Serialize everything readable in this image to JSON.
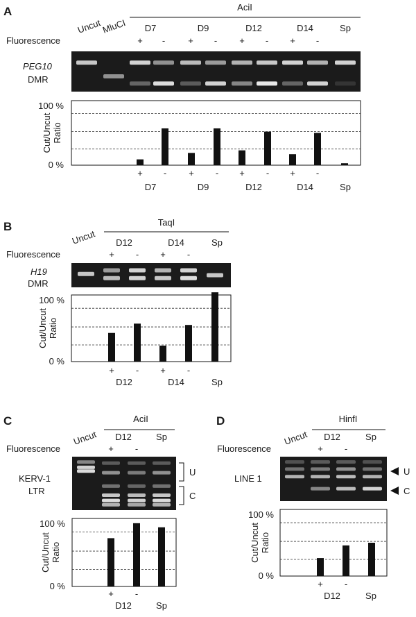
{
  "colors": {
    "gel_background": "#1b1b1b",
    "band": "#f2f2f2",
    "bar": "#111111",
    "axis": "#111111",
    "gridline": "#333333"
  },
  "panels": [
    {
      "letter": "A",
      "header_lanes": [
        "Uncut",
        "MluCI"
      ],
      "enzyme": "AciI",
      "fluorescence_label": "Fluorescence",
      "groups": [
        "D7",
        "D9",
        "D12",
        "D14",
        "Sp"
      ],
      "fluorescence_signs": [
        "+",
        "-",
        "+",
        "-",
        "+",
        "-",
        "+",
        "-"
      ],
      "gel_label_line1": "PEG10",
      "gel_label_line2": "DMR",
      "gel_lanes": [
        {
          "bands": [
            {
              "pos": 0.28,
              "w": 0.8
            }
          ]
        },
        {
          "bands": [
            {
              "pos": 0.62,
              "w": 0.55
            }
          ]
        },
        {
          "bands": [
            {
              "pos": 0.28,
              "w": 0.85
            },
            {
              "pos": 0.8,
              "w": 0.35
            }
          ]
        },
        {
          "bands": [
            {
              "pos": 0.28,
              "w": 0.55
            },
            {
              "pos": 0.8,
              "w": 0.9
            }
          ]
        },
        {
          "bands": [
            {
              "pos": 0.28,
              "w": 0.75
            },
            {
              "pos": 0.8,
              "w": 0.3
            }
          ]
        },
        {
          "bands": [
            {
              "pos": 0.28,
              "w": 0.6
            },
            {
              "pos": 0.8,
              "w": 0.85
            }
          ]
        },
        {
          "bands": [
            {
              "pos": 0.28,
              "w": 0.7
            },
            {
              "pos": 0.8,
              "w": 0.5
            }
          ]
        },
        {
          "bands": [
            {
              "pos": 0.28,
              "w": 0.8
            },
            {
              "pos": 0.8,
              "w": 0.95
            }
          ]
        },
        {
          "bands": [
            {
              "pos": 0.28,
              "w": 0.85
            },
            {
              "pos": 0.8,
              "w": 0.35
            }
          ]
        },
        {
          "bands": [
            {
              "pos": 0.28,
              "w": 0.7
            },
            {
              "pos": 0.8,
              "w": 0.85
            }
          ]
        },
        {
          "bands": [
            {
              "pos": 0.28,
              "w": 0.85
            },
            {
              "pos": 0.8,
              "w": 0.12
            }
          ]
        }
      ],
      "chart_data": {
        "type": "bar",
        "ylabel": "Cut/Uncut Ratio",
        "yticks": [
          "100 %",
          "0 %"
        ],
        "ylim": [
          0,
          100
        ],
        "gridlines": [
          25,
          52,
          80
        ],
        "categories": [
          "D7 +",
          "D7 -",
          "D9 +",
          "D9 -",
          "D12 +",
          "D12 -",
          "D14 +",
          "D14 -",
          "Sp"
        ],
        "values": [
          9,
          57,
          19,
          57,
          23,
          52,
          17,
          50,
          3
        ],
        "x_signs": [
          "+",
          "-",
          "+",
          "-",
          "+",
          "-",
          "+",
          "-",
          ""
        ],
        "x_groups": [
          "D7",
          "D9",
          "D12",
          "D14",
          "Sp"
        ]
      }
    },
    {
      "letter": "B",
      "header_lanes": [
        "Uncut"
      ],
      "enzyme": "TaqI",
      "fluorescence_label": "Fluorescence",
      "groups": [
        "D12",
        "D14",
        "Sp"
      ],
      "fluorescence_signs": [
        "+",
        "-",
        "+",
        "-"
      ],
      "gel_label_line1": "H19",
      "gel_label_line2": "DMR",
      "gel_lanes": [
        {
          "bands": [
            {
              "pos": 0.45,
              "w": 0.8
            }
          ]
        },
        {
          "bands": [
            {
              "pos": 0.3,
              "w": 0.6
            },
            {
              "pos": 0.62,
              "w": 0.75
            }
          ]
        },
        {
          "bands": [
            {
              "pos": 0.3,
              "w": 0.85
            },
            {
              "pos": 0.62,
              "w": 0.85
            }
          ]
        },
        {
          "bands": [
            {
              "pos": 0.3,
              "w": 0.7
            },
            {
              "pos": 0.62,
              "w": 0.8
            }
          ]
        },
        {
          "bands": [
            {
              "pos": 0.3,
              "w": 0.85
            },
            {
              "pos": 0.62,
              "w": 0.9
            }
          ]
        },
        {
          "bands": [
            {
              "pos": 0.5,
              "w": 0.8
            }
          ]
        }
      ],
      "chart_data": {
        "type": "bar",
        "ylabel": "Cut/Uncut Ratio",
        "yticks": [
          "100 %",
          "0 %"
        ],
        "ylim": [
          0,
          100
        ],
        "gridlines": [
          25,
          52,
          80
        ],
        "categories": [
          "D12 +",
          "D12 -",
          "D14 +",
          "D14 -",
          "Sp"
        ],
        "values": [
          43,
          57,
          24,
          55,
          104
        ],
        "x_signs": [
          "+",
          "-",
          "+",
          "-",
          ""
        ],
        "x_groups": [
          "D12",
          "D14",
          "Sp"
        ]
      }
    },
    {
      "letter": "C",
      "header_lanes": [
        "Uncut"
      ],
      "enzyme": "AciI",
      "fluorescence_label": "Fluorescence",
      "groups": [
        "D12",
        "Sp"
      ],
      "fluorescence_signs": [
        "+",
        "-"
      ],
      "gel_label_line1": "KERV-1",
      "gel_label_line2": "LTR",
      "bracket_labels": [
        "U",
        "C"
      ],
      "gel_lanes": [
        {
          "bands": [
            {
              "pos": 0.1,
              "w": 0.5
            },
            {
              "pos": 0.2,
              "w": 0.85
            },
            {
              "pos": 0.27,
              "w": 0.9
            }
          ]
        },
        {
          "bands": [
            {
              "pos": 0.12,
              "w": 0.3
            },
            {
              "pos": 0.3,
              "w": 0.55
            },
            {
              "pos": 0.55,
              "w": 0.4
            },
            {
              "pos": 0.72,
              "w": 0.8
            },
            {
              "pos": 0.82,
              "w": 0.9
            },
            {
              "pos": 0.9,
              "w": 0.7
            }
          ]
        },
        {
          "bands": [
            {
              "pos": 0.12,
              "w": 0.3
            },
            {
              "pos": 0.3,
              "w": 0.45
            },
            {
              "pos": 0.55,
              "w": 0.35
            },
            {
              "pos": 0.72,
              "w": 0.75
            },
            {
              "pos": 0.82,
              "w": 0.85
            },
            {
              "pos": 0.9,
              "w": 0.65
            }
          ]
        },
        {
          "bands": [
            {
              "pos": 0.12,
              "w": 0.3
            },
            {
              "pos": 0.3,
              "w": 0.55
            },
            {
              "pos": 0.55,
              "w": 0.4
            },
            {
              "pos": 0.72,
              "w": 0.8
            },
            {
              "pos": 0.82,
              "w": 0.9
            },
            {
              "pos": 0.9,
              "w": 0.7
            }
          ]
        }
      ],
      "chart_data": {
        "type": "bar",
        "ylabel": "Cut/Uncut Ratio",
        "yticks": [
          "100 %",
          "0 %"
        ],
        "ylim": [
          0,
          100
        ],
        "gridlines": [
          25,
          52,
          80
        ],
        "categories": [
          "D12 +",
          "D12 -",
          "Sp"
        ],
        "values": [
          71,
          93,
          87
        ],
        "x_signs": [
          "+",
          "-",
          ""
        ],
        "x_groups": [
          "D12",
          "Sp"
        ]
      }
    },
    {
      "letter": "D",
      "header_lanes": [
        "Uncut"
      ],
      "enzyme": "HinfI",
      "fluorescence_label": "Fluorescence",
      "groups": [
        "D12",
        "Sp"
      ],
      "fluorescence_signs": [
        "+",
        "-"
      ],
      "gel_label_line1": "LINE 1",
      "gel_label_line2": "",
      "arrow_labels": [
        "U",
        "C"
      ],
      "gel_lanes": [
        {
          "bands": [
            {
              "pos": 0.12,
              "w": 0.25
            },
            {
              "pos": 0.28,
              "w": 0.4
            },
            {
              "pos": 0.45,
              "w": 0.7
            }
          ]
        },
        {
          "bands": [
            {
              "pos": 0.12,
              "w": 0.3
            },
            {
              "pos": 0.28,
              "w": 0.45
            },
            {
              "pos": 0.45,
              "w": 0.7
            },
            {
              "pos": 0.72,
              "w": 0.5
            }
          ]
        },
        {
          "bands": [
            {
              "pos": 0.12,
              "w": 0.3
            },
            {
              "pos": 0.28,
              "w": 0.55
            },
            {
              "pos": 0.45,
              "w": 0.75
            },
            {
              "pos": 0.72,
              "w": 0.75
            }
          ]
        },
        {
          "bands": [
            {
              "pos": 0.12,
              "w": 0.25
            },
            {
              "pos": 0.28,
              "w": 0.4
            },
            {
              "pos": 0.45,
              "w": 0.7
            },
            {
              "pos": 0.72,
              "w": 0.85
            }
          ]
        }
      ],
      "chart_data": {
        "type": "bar",
        "ylabel": "Cut/Uncut Ratio",
        "yticks": [
          "100 %",
          "0 %"
        ],
        "ylim": [
          0,
          100
        ],
        "gridlines": [
          25,
          52,
          80
        ],
        "categories": [
          "D12 +",
          "D12 -",
          "Sp"
        ],
        "values": [
          27,
          46,
          50
        ],
        "x_signs": [
          "+",
          "-",
          ""
        ],
        "x_groups": [
          "D12",
          "Sp"
        ]
      }
    }
  ]
}
